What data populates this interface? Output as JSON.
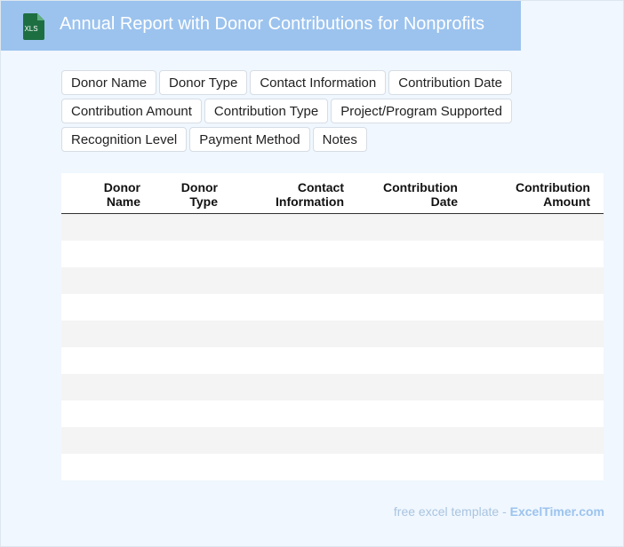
{
  "header": {
    "icon_label": "XLS",
    "title": "Annual Report with Donor Contributions for Nonprofits",
    "colors": {
      "banner": "#9cc3ee",
      "icon": "#1d6f42"
    }
  },
  "fields": [
    "Donor Name",
    "Donor Type",
    "Contact Information",
    "Contribution Date",
    "Contribution Amount",
    "Contribution Type",
    "Project/Program Supported",
    "Recognition Level",
    "Payment Method",
    "Notes"
  ],
  "table": {
    "columns": [
      {
        "line1": "Donor",
        "line2": "Name"
      },
      {
        "line1": "Donor",
        "line2": "Type"
      },
      {
        "line1": "Contact",
        "line2": "Information"
      },
      {
        "line1": "Contribution",
        "line2": "Date"
      },
      {
        "line1": "Contribution",
        "line2": "Amount"
      }
    ],
    "empty_rows": 10
  },
  "footer": {
    "prefix": "free excel template - ",
    "brand": "ExcelTimer.com"
  }
}
